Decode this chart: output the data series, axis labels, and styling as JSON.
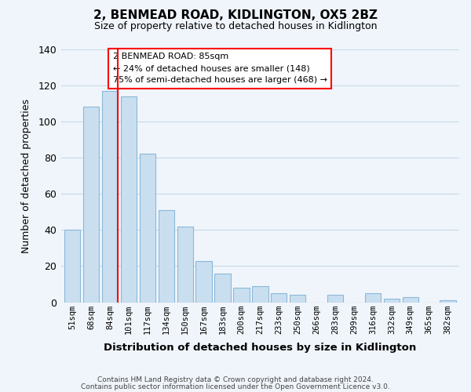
{
  "title": "2, BENMEAD ROAD, KIDLINGTON, OX5 2BZ",
  "subtitle": "Size of property relative to detached houses in Kidlington",
  "xlabel": "Distribution of detached houses by size in Kidlington",
  "ylabel": "Number of detached properties",
  "bar_labels": [
    "51sqm",
    "68sqm",
    "84sqm",
    "101sqm",
    "117sqm",
    "134sqm",
    "150sqm",
    "167sqm",
    "183sqm",
    "200sqm",
    "217sqm",
    "233sqm",
    "250sqm",
    "266sqm",
    "283sqm",
    "299sqm",
    "316sqm",
    "332sqm",
    "349sqm",
    "365sqm",
    "382sqm"
  ],
  "bar_values": [
    40,
    108,
    117,
    114,
    82,
    51,
    42,
    23,
    16,
    8,
    9,
    5,
    4,
    0,
    4,
    0,
    5,
    2,
    3,
    0,
    1
  ],
  "bar_color": "#c9dff0",
  "bar_edge_color": "#8ab8d8",
  "redline_bar_index": 2,
  "ylim": [
    0,
    140
  ],
  "yticks": [
    0,
    20,
    40,
    60,
    80,
    100,
    120,
    140
  ],
  "annotation_title": "2 BENMEAD ROAD: 85sqm",
  "annotation_line1": "← 24% of detached houses are smaller (148)",
  "annotation_line2": "75% of semi-detached houses are larger (468) →",
  "footer_line1": "Contains HM Land Registry data © Crown copyright and database right 2024.",
  "footer_line2": "Contains public sector information licensed under the Open Government Licence v3.0.",
  "background_color": "#f0f5fb",
  "grid_color": "#c8d8e8"
}
